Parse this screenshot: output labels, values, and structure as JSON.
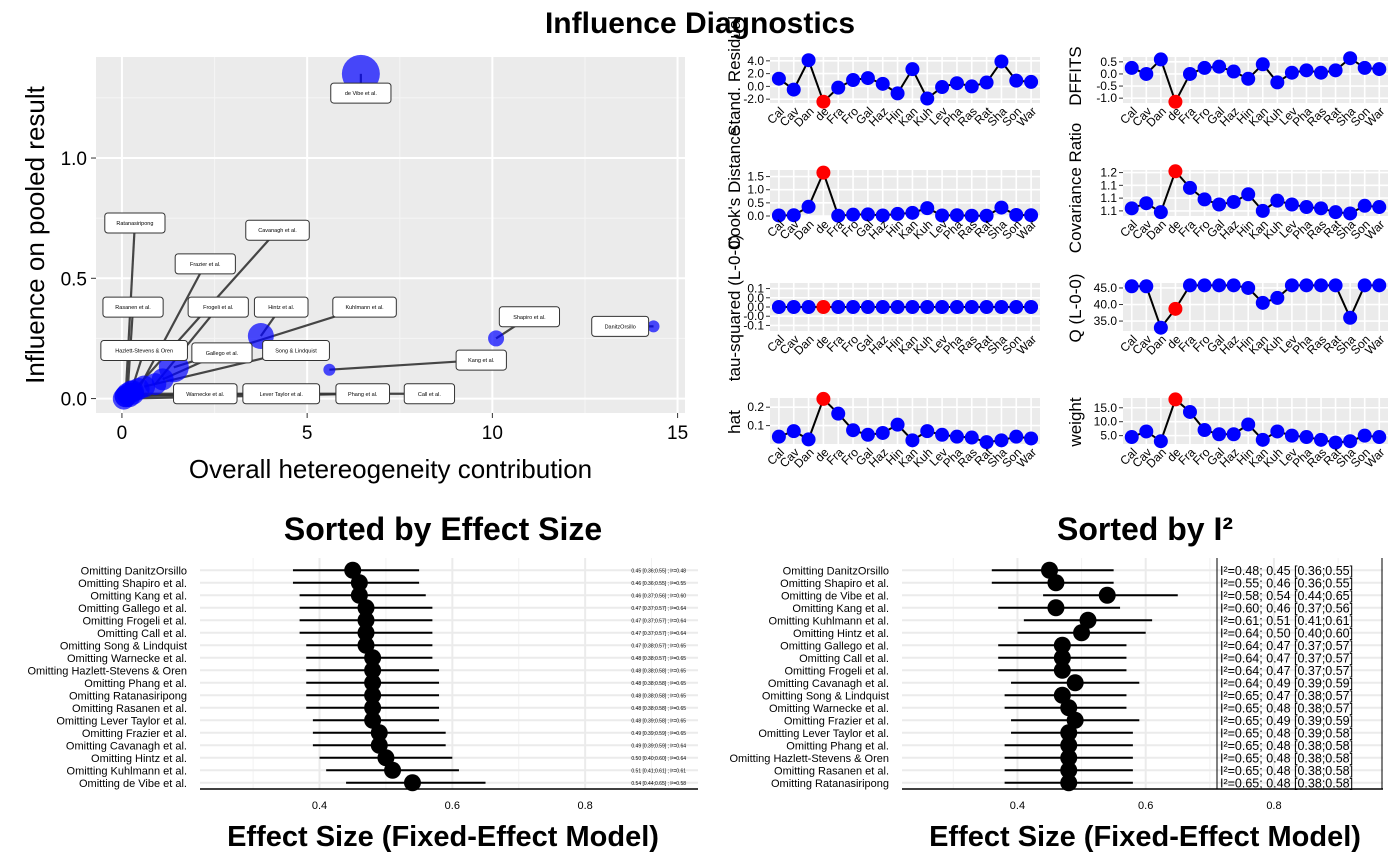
{
  "title": "Influence Diagnostics",
  "chart_data": [
    {
      "type": "scatter",
      "id": "baujat",
      "xlabel": "Overall hetereogeneity contribution",
      "ylabel": "Influence on pooled result",
      "xlim": [
        -0.7,
        15.2
      ],
      "ylim": [
        -0.06,
        1.42
      ],
      "xticks": [
        0,
        5,
        10,
        15
      ],
      "yticks": [
        0.0,
        0.5,
        1.0
      ],
      "ytick_labels": [
        "0.0",
        "0.5",
        "1.0"
      ],
      "point_color": "#0000ff",
      "points": [
        {
          "label": "de Vibe et al.",
          "x": 6.45,
          "y": 1.35,
          "size": 19,
          "lx": 6.45,
          "ly": 1.27
        },
        {
          "label": "Ratanasiripong",
          "x": 0.1,
          "y": 0.01,
          "size": 11,
          "lx": 0.35,
          "ly": 0.73
        },
        {
          "label": "Cavanagh et al.",
          "x": 0.3,
          "y": 0.03,
          "size": 11,
          "lx": 4.2,
          "ly": 0.7
        },
        {
          "label": "Frazier et al.",
          "x": 0.45,
          "y": 0.04,
          "size": 11,
          "lx": 2.25,
          "ly": 0.56
        },
        {
          "label": "Rasanen et al.",
          "x": 0.15,
          "y": 0.02,
          "size": 11,
          "lx": 0.3,
          "ly": 0.38
        },
        {
          "label": "Frogeli et al.",
          "x": 0.9,
          "y": 0.06,
          "size": 11,
          "lx": 2.6,
          "ly": 0.38
        },
        {
          "label": "Hintz et al.",
          "x": 3.75,
          "y": 0.26,
          "size": 13,
          "lx": 4.3,
          "ly": 0.38
        },
        {
          "label": "Kuhlmann et al.",
          "x": 1.4,
          "y": 0.13,
          "size": 15,
          "lx": 6.55,
          "ly": 0.38
        },
        {
          "label": "Shapiro et al.",
          "x": 10.1,
          "y": 0.25,
          "size": 8,
          "lx": 11.0,
          "ly": 0.34
        },
        {
          "label": "DanitzOrsillo",
          "x": 14.35,
          "y": 0.3,
          "size": 6,
          "lx": 13.45,
          "ly": 0.3
        },
        {
          "label": "Hazlett-Stevens & Oren",
          "x": 0.25,
          "y": 0.03,
          "size": 11,
          "lx": 0.6,
          "ly": 0.2
        },
        {
          "label": "Gallego et al.",
          "x": 1.1,
          "y": 0.08,
          "size": 11,
          "lx": 2.7,
          "ly": 0.19
        },
        {
          "label": "Song & Lindquist",
          "x": 0.6,
          "y": 0.05,
          "size": 11,
          "lx": 4.7,
          "ly": 0.2
        },
        {
          "label": "Kang et al.",
          "x": 5.6,
          "y": 0.12,
          "size": 6,
          "lx": 9.7,
          "ly": 0.16
        },
        {
          "label": "Warnecke et al.",
          "x": 0.2,
          "y": 0.01,
          "size": 11,
          "lx": 2.25,
          "ly": 0.02
        },
        {
          "label": "Lever Taylor et al.",
          "x": 0.1,
          "y": 0.01,
          "size": 11,
          "lx": 4.3,
          "ly": 0.02
        },
        {
          "label": "Phang et al.",
          "x": 0.05,
          "y": 0.0,
          "size": 11,
          "lx": 6.5,
          "ly": 0.02
        },
        {
          "label": "Call et al.",
          "x": 0.3,
          "y": 0.02,
          "size": 11,
          "lx": 8.3,
          "ly": 0.02
        }
      ]
    },
    {
      "type": "line",
      "id": "diag",
      "categories": [
        "Cal",
        "Cav",
        "Dan",
        "de",
        "Fra",
        "Fro",
        "Gal",
        "Haz",
        "Hin",
        "Kan",
        "Kuh",
        "Lev",
        "Pha",
        "Ras",
        "Rat",
        "Sha",
        "Son",
        "War"
      ],
      "highlight_index": 3,
      "point_color": "#0000ff",
      "highlight_color": "#ff0000",
      "panels": [
        {
          "ylabel": "Stand. Residual",
          "ylim": [
            -2.6,
            4.6
          ],
          "yticks": [
            -2.0,
            0.0,
            2.0,
            4.0
          ],
          "ytick_labels": [
            "-2.0",
            "0.0",
            "2.0",
            "4.0"
          ],
          "values": [
            1.2,
            -0.5,
            4.1,
            -2.4,
            -0.2,
            1.0,
            1.3,
            0.4,
            -1.1,
            2.7,
            -1.9,
            -0.1,
            0.5,
            0.0,
            0.6,
            3.9,
            0.9,
            0.7
          ]
        },
        {
          "ylabel": "DFFITS",
          "ylim": [
            -1.2,
            0.7
          ],
          "yticks": [
            -1.0,
            -0.5,
            0.0,
            0.5
          ],
          "ytick_labels": [
            "-1.0",
            "-0.5",
            "0.0",
            "0.5"
          ],
          "values": [
            0.25,
            0.0,
            0.6,
            -1.15,
            0.0,
            0.25,
            0.3,
            0.1,
            -0.2,
            0.4,
            -0.35,
            0.05,
            0.15,
            0.05,
            0.15,
            0.65,
            0.25,
            0.2
          ]
        },
        {
          "ylabel": "Cook's Distance",
          "ylim": [
            0.0,
            1.75
          ],
          "yticks": [
            0.0,
            0.5,
            1.0,
            1.5
          ],
          "ytick_labels": [
            "0.0",
            "0.5",
            "1.0",
            "1.5"
          ],
          "values": [
            0.02,
            0.03,
            0.35,
            1.65,
            0.01,
            0.05,
            0.06,
            0.02,
            0.08,
            0.12,
            0.3,
            0.02,
            0.03,
            0.01,
            0.01,
            0.32,
            0.04,
            0.03
          ]
        },
        {
          "ylabel": "Covariance Ratio",
          "ylim": [
            1.03,
            1.21
          ],
          "yticks": [
            1.05,
            1.1,
            1.15,
            1.2
          ],
          "ytick_labels": [
            "1.1",
            "1.1",
            "1.1",
            "1.2"
          ],
          "values": [
            1.06,
            1.08,
            1.045,
            1.205,
            1.14,
            1.095,
            1.075,
            1.085,
            1.115,
            1.05,
            1.09,
            1.075,
            1.065,
            1.06,
            1.045,
            1.04,
            1.07,
            1.065
          ]
        },
        {
          "ylabel": "tau-squared (L-0-0)",
          "ylim": [
            -0.13,
            0.13
          ],
          "yticks": [
            -0.1,
            -0.05,
            0.0,
            0.05,
            0.1
          ],
          "ytick_labels": [
            "-0.1",
            "-0.0",
            "0.0",
            "0.0",
            "0.1"
          ],
          "values": [
            0,
            0,
            0,
            0,
            0,
            0,
            0,
            0,
            0,
            0,
            0,
            0,
            0,
            0,
            0,
            0,
            0,
            0
          ]
        },
        {
          "ylabel": "Q (L-0-0)",
          "ylim": [
            32.0,
            46.5
          ],
          "yticks": [
            35.0,
            40.0,
            45.0
          ],
          "ytick_labels": [
            "35.0",
            "40.0",
            "45.0"
          ],
          "values": [
            45.5,
            45.5,
            33.0,
            38.7,
            45.8,
            45.8,
            45.8,
            45.8,
            45.0,
            40.5,
            42.0,
            45.8,
            45.8,
            45.8,
            45.8,
            36.0,
            45.8,
            45.8
          ]
        },
        {
          "ylabel": "hat",
          "ylim": [
            0.0,
            0.25
          ],
          "yticks": [
            0.1,
            0.2
          ],
          "ytick_labels": [
            "0.1",
            "0.2"
          ],
          "values": [
            0.04,
            0.07,
            0.025,
            0.245,
            0.165,
            0.075,
            0.05,
            0.06,
            0.105,
            0.02,
            0.07,
            0.05,
            0.04,
            0.035,
            0.01,
            0.02,
            0.04,
            0.03
          ]
        },
        {
          "ylabel": "weight",
          "ylim": [
            2.0,
            18.5
          ],
          "yticks": [
            5.0,
            10.0,
            15.0
          ],
          "ytick_labels": [
            "5.0",
            "10.0",
            "15.0"
          ],
          "values": [
            4.5,
            6.5,
            3.0,
            18.0,
            13.5,
            7.0,
            5.5,
            5.5,
            9.0,
            3.5,
            6.5,
            5.0,
            4.5,
            3.5,
            2.5,
            3.0,
            5.0,
            4.5
          ]
        }
      ]
    },
    {
      "type": "forest",
      "id": "by_effect",
      "title": "Sorted by Effect Size",
      "xlabel": "Effect Size (Fixed-Effect Model)",
      "xlim": [
        0.22,
        0.97
      ],
      "xticks": [
        0.4,
        0.6,
        0.8
      ],
      "xtick_labels": [
        "0.4",
        "0.6",
        "0.8"
      ],
      "rows": [
        {
          "label": "Omitting DanitzOrsillo",
          "est": 0.45,
          "lo": 0.36,
          "hi": 0.55,
          "text": "0.45 [0.36;0.55] ; I²=0.48"
        },
        {
          "label": "Omitting Shapiro et al.",
          "est": 0.46,
          "lo": 0.36,
          "hi": 0.55,
          "text": "0.46 [0.36;0.55] ; I²=0.55"
        },
        {
          "label": "Omitting Kang et al.",
          "est": 0.46,
          "lo": 0.37,
          "hi": 0.56,
          "text": "0.46 [0.37;0.56] ; I²=0.60"
        },
        {
          "label": "Omitting Gallego et al.",
          "est": 0.47,
          "lo": 0.37,
          "hi": 0.57,
          "text": "0.47 [0.37;0.57] ; I²=0.64"
        },
        {
          "label": "Omitting Frogeli et al.",
          "est": 0.47,
          "lo": 0.37,
          "hi": 0.57,
          "text": "0.47 [0.37;0.57] ; I²=0.64"
        },
        {
          "label": "Omitting Call et al.",
          "est": 0.47,
          "lo": 0.37,
          "hi": 0.57,
          "text": "0.47 [0.37;0.57] ; I²=0.64"
        },
        {
          "label": "Omitting Song & Lindquist",
          "est": 0.47,
          "lo": 0.38,
          "hi": 0.57,
          "text": "0.47 [0.38;0.57] ; I²=0.65"
        },
        {
          "label": "Omitting Warnecke et al.",
          "est": 0.48,
          "lo": 0.38,
          "hi": 0.57,
          "text": "0.48 [0.38;0.57] ; I²=0.65"
        },
        {
          "label": "Omitting Hazlett-Stevens & Oren",
          "est": 0.48,
          "lo": 0.38,
          "hi": 0.58,
          "text": "0.48 [0.38;0.58] ; I²=0.65"
        },
        {
          "label": "Omitting Phang et al.",
          "est": 0.48,
          "lo": 0.38,
          "hi": 0.58,
          "text": "0.48 [0.38;0.58] ; I²=0.65"
        },
        {
          "label": "Omitting Ratanasiripong",
          "est": 0.48,
          "lo": 0.38,
          "hi": 0.58,
          "text": "0.48 [0.38;0.58] ; I²=0.65"
        },
        {
          "label": "Omitting Rasanen et al.",
          "est": 0.48,
          "lo": 0.38,
          "hi": 0.58,
          "text": "0.48 [0.38;0.58] ; I²=0.65"
        },
        {
          "label": "Omitting Lever Taylor et al.",
          "est": 0.48,
          "lo": 0.39,
          "hi": 0.58,
          "text": "0.48 [0.39;0.58] ; I²=0.65"
        },
        {
          "label": "Omitting Frazier et al.",
          "est": 0.49,
          "lo": 0.39,
          "hi": 0.59,
          "text": "0.49 [0.39;0.59] ; I²=0.65"
        },
        {
          "label": "Omitting Cavanagh et al.",
          "est": 0.49,
          "lo": 0.39,
          "hi": 0.59,
          "text": "0.49 [0.39;0.59] ; I²=0.64"
        },
        {
          "label": "Omitting Hintz et al.",
          "est": 0.5,
          "lo": 0.4,
          "hi": 0.6,
          "text": "0.50 [0.40;0.60] ; I²=0.64"
        },
        {
          "label": "Omitting Kuhlmann et al.",
          "est": 0.51,
          "lo": 0.41,
          "hi": 0.61,
          "text": "0.51 [0.41;0.61] ; I²=0.61"
        },
        {
          "label": "Omitting de Vibe et al.",
          "est": 0.54,
          "lo": 0.44,
          "hi": 0.65,
          "text": "0.54 [0.44;0.65] ; I²=0.58"
        }
      ]
    },
    {
      "type": "forest",
      "id": "by_i2",
      "title": "Sorted by I²",
      "xlabel": "Effect Size (Fixed-Effect Model)",
      "xlim": [
        0.22,
        0.97
      ],
      "xticks": [
        0.4,
        0.6,
        0.8
      ],
      "xtick_labels": [
        "0.4",
        "0.6",
        "0.8"
      ],
      "rows": [
        {
          "label": "Omitting DanitzOrsillo",
          "est": 0.45,
          "lo": 0.36,
          "hi": 0.55,
          "text": "I²=0.48; 0.45 [0.36;0.55]"
        },
        {
          "label": "Omitting Shapiro et al.",
          "est": 0.46,
          "lo": 0.36,
          "hi": 0.55,
          "text": "I²=0.55; 0.46 [0.36;0.55]"
        },
        {
          "label": "Omitting de Vibe et al.",
          "est": 0.54,
          "lo": 0.44,
          "hi": 0.65,
          "text": "I²=0.58; 0.54 [0.44;0.65]"
        },
        {
          "label": "Omitting Kang et al.",
          "est": 0.46,
          "lo": 0.37,
          "hi": 0.56,
          "text": "I²=0.60; 0.46 [0.37;0.56]"
        },
        {
          "label": "Omitting Kuhlmann et al.",
          "est": 0.51,
          "lo": 0.41,
          "hi": 0.61,
          "text": "I²=0.61; 0.51 [0.41;0.61]"
        },
        {
          "label": "Omitting Hintz et al.",
          "est": 0.5,
          "lo": 0.4,
          "hi": 0.6,
          "text": "I²=0.64; 0.50 [0.40;0.60]"
        },
        {
          "label": "Omitting Gallego et al.",
          "est": 0.47,
          "lo": 0.37,
          "hi": 0.57,
          "text": "I²=0.64; 0.47 [0.37;0.57]"
        },
        {
          "label": "Omitting Call et al.",
          "est": 0.47,
          "lo": 0.37,
          "hi": 0.57,
          "text": "I²=0.64; 0.47 [0.37;0.57]"
        },
        {
          "label": "Omitting Frogeli et al.",
          "est": 0.47,
          "lo": 0.37,
          "hi": 0.57,
          "text": "I²=0.64; 0.47 [0.37;0.57]"
        },
        {
          "label": "Omitting Cavanagh et al.",
          "est": 0.49,
          "lo": 0.39,
          "hi": 0.59,
          "text": "I²=0.64; 0.49 [0.39;0.59]"
        },
        {
          "label": "Omitting Song & Lindquist",
          "est": 0.47,
          "lo": 0.38,
          "hi": 0.57,
          "text": "I²=0.65; 0.47 [0.38;0.57]"
        },
        {
          "label": "Omitting Warnecke et al.",
          "est": 0.48,
          "lo": 0.38,
          "hi": 0.57,
          "text": "I²=0.65; 0.48 [0.38;0.57]"
        },
        {
          "label": "Omitting Frazier et al.",
          "est": 0.49,
          "lo": 0.39,
          "hi": 0.59,
          "text": "I²=0.65; 0.49 [0.39;0.59]"
        },
        {
          "label": "Omitting Lever Taylor et al.",
          "est": 0.48,
          "lo": 0.39,
          "hi": 0.58,
          "text": "I²=0.65; 0.48 [0.39;0.58]"
        },
        {
          "label": "Omitting Phang et al.",
          "est": 0.48,
          "lo": 0.38,
          "hi": 0.58,
          "text": "I²=0.65; 0.48 [0.38;0.58]"
        },
        {
          "label": "Omitting Hazlett-Stevens & Oren",
          "est": 0.48,
          "lo": 0.38,
          "hi": 0.58,
          "text": "I²=0.65; 0.48 [0.38;0.58]"
        },
        {
          "label": "Omitting Rasanen et al.",
          "est": 0.48,
          "lo": 0.38,
          "hi": 0.58,
          "text": "I²=0.65; 0.48 [0.38;0.58]"
        },
        {
          "label": "Omitting Ratanasiripong",
          "est": 0.48,
          "lo": 0.38,
          "hi": 0.58,
          "text": "I²=0.65; 0.48 [0.38;0.58]"
        }
      ]
    }
  ]
}
